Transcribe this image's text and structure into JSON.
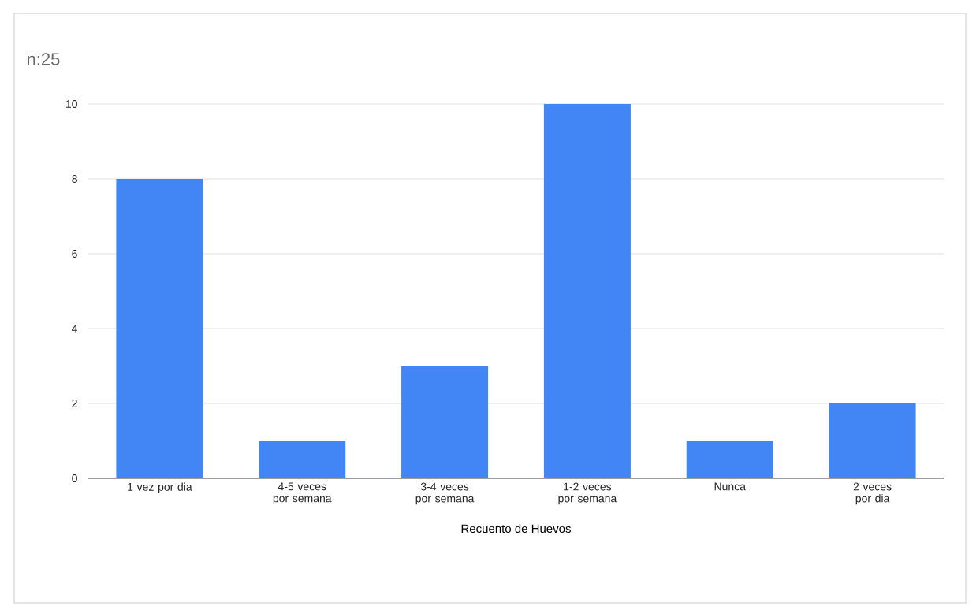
{
  "chart_data": {
    "type": "bar",
    "title": "n:25",
    "xlabel": "Recuento de Huevos",
    "categories": [
      "1 vez por dia",
      "4-5 veces por semana",
      "3-4 veces por semana",
      "1-2 veces por semana",
      "Nunca",
      "2 veces por dia"
    ],
    "values": [
      8,
      1,
      3,
      10,
      1,
      2
    ],
    "color": "#4285f4",
    "ylim": [
      0,
      10
    ],
    "yticks": [
      0,
      2,
      4,
      6,
      8,
      10
    ],
    "grid": "y"
  }
}
